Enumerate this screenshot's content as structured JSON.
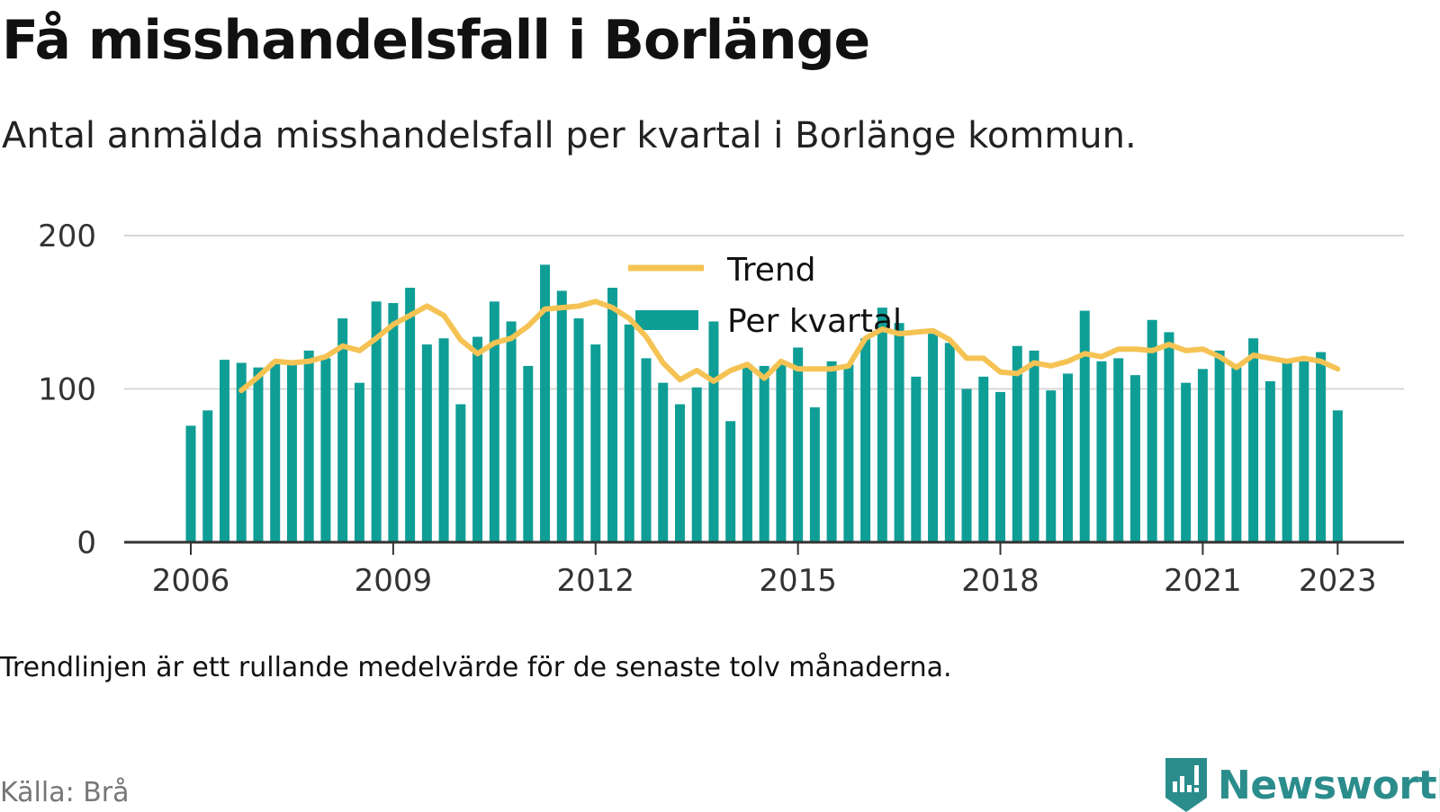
{
  "title": "Få misshandelsfall i Borlänge",
  "subtitle": "Antal anmälda misshandelsfall per kvartal i Borlänge kommun.",
  "note": "Trendlinjen är ett rullande medelvärde för de senaste tolv månaderna.",
  "source": "Källa: Brå",
  "brand": {
    "name": "Newsworthy",
    "icon": "newsworthy-logo-icon"
  },
  "colors": {
    "bar": "#0f9e96",
    "trend": "#f5c354",
    "grid": "#d8d8d8",
    "axis": "#333333"
  },
  "chart_data": {
    "type": "bar",
    "ylim": [
      0,
      200
    ],
    "yticks": [
      0,
      100,
      200
    ],
    "xticks": [
      "2006",
      "2009",
      "2012",
      "2015",
      "2018",
      "2021",
      "2023"
    ],
    "grid": true,
    "legend_position": "top-center",
    "legend": {
      "trend": "Trend",
      "bars": "Per kvartal"
    },
    "categories": [
      "2006 K1",
      "2006 K2",
      "2006 K3",
      "2006 K4",
      "2007 K1",
      "2007 K2",
      "2007 K3",
      "2007 K4",
      "2008 K1",
      "2008 K2",
      "2008 K3",
      "2008 K4",
      "2009 K1",
      "2009 K2",
      "2009 K3",
      "2009 K4",
      "2010 K1",
      "2010 K2",
      "2010 K3",
      "2010 K4",
      "2011 K1",
      "2011 K2",
      "2011 K3",
      "2011 K4",
      "2012 K1",
      "2012 K2",
      "2012 K3",
      "2012 K4",
      "2013 K1",
      "2013 K2",
      "2013 K3",
      "2013 K4",
      "2014 K1",
      "2014 K2",
      "2014 K3",
      "2014 K4",
      "2015 K1",
      "2015 K2",
      "2015 K3",
      "2015 K4",
      "2016 K1",
      "2016 K2",
      "2016 K3",
      "2016 K4",
      "2017 K1",
      "2017 K2",
      "2017 K3",
      "2017 K4",
      "2018 K1",
      "2018 K2",
      "2018 K3",
      "2018 K4",
      "2019 K1",
      "2019 K2",
      "2019 K3",
      "2019 K4",
      "2020 K1",
      "2020 K2",
      "2020 K3",
      "2020 K4",
      "2021 K1",
      "2021 K2",
      "2021 K3",
      "2021 K4",
      "2022 K1",
      "2022 K2",
      "2022 K3",
      "2022 K4",
      "2023 K1",
      "2023 K2"
    ],
    "series": [
      {
        "name": "Per kvartal",
        "values": [
          76,
          86,
          119,
          117,
          114,
          118,
          117,
          125,
          120,
          146,
          104,
          157,
          156,
          166,
          129,
          133,
          90,
          134,
          157,
          144,
          115,
          181,
          164,
          146,
          129,
          166,
          142,
          120,
          104,
          90,
          101,
          144,
          79,
          116,
          115,
          116,
          127,
          88,
          118,
          116,
          133,
          153,
          143,
          108,
          136,
          130,
          100,
          108,
          98,
          128,
          125,
          99,
          110,
          151,
          118,
          120,
          109,
          145,
          137,
          104,
          113,
          125,
          114,
          133,
          105,
          119,
          118,
          124,
          86,
          0
        ]
      },
      {
        "name": "Trend",
        "values": [
          null,
          null,
          null,
          99,
          108,
          118,
          117,
          118,
          121,
          128,
          125,
          133,
          142,
          148,
          154,
          148,
          132,
          123,
          130,
          133,
          141,
          152,
          153,
          154,
          157,
          153,
          146,
          134,
          117,
          106,
          112,
          105,
          112,
          116,
          107,
          118,
          113,
          113,
          113,
          115,
          133,
          139,
          136,
          137,
          138,
          132,
          120,
          120,
          111,
          110,
          117,
          115,
          118,
          123,
          121,
          126,
          126,
          125,
          129,
          125,
          126,
          121,
          114,
          122,
          120,
          118,
          120,
          118,
          113,
          null
        ]
      }
    ]
  }
}
